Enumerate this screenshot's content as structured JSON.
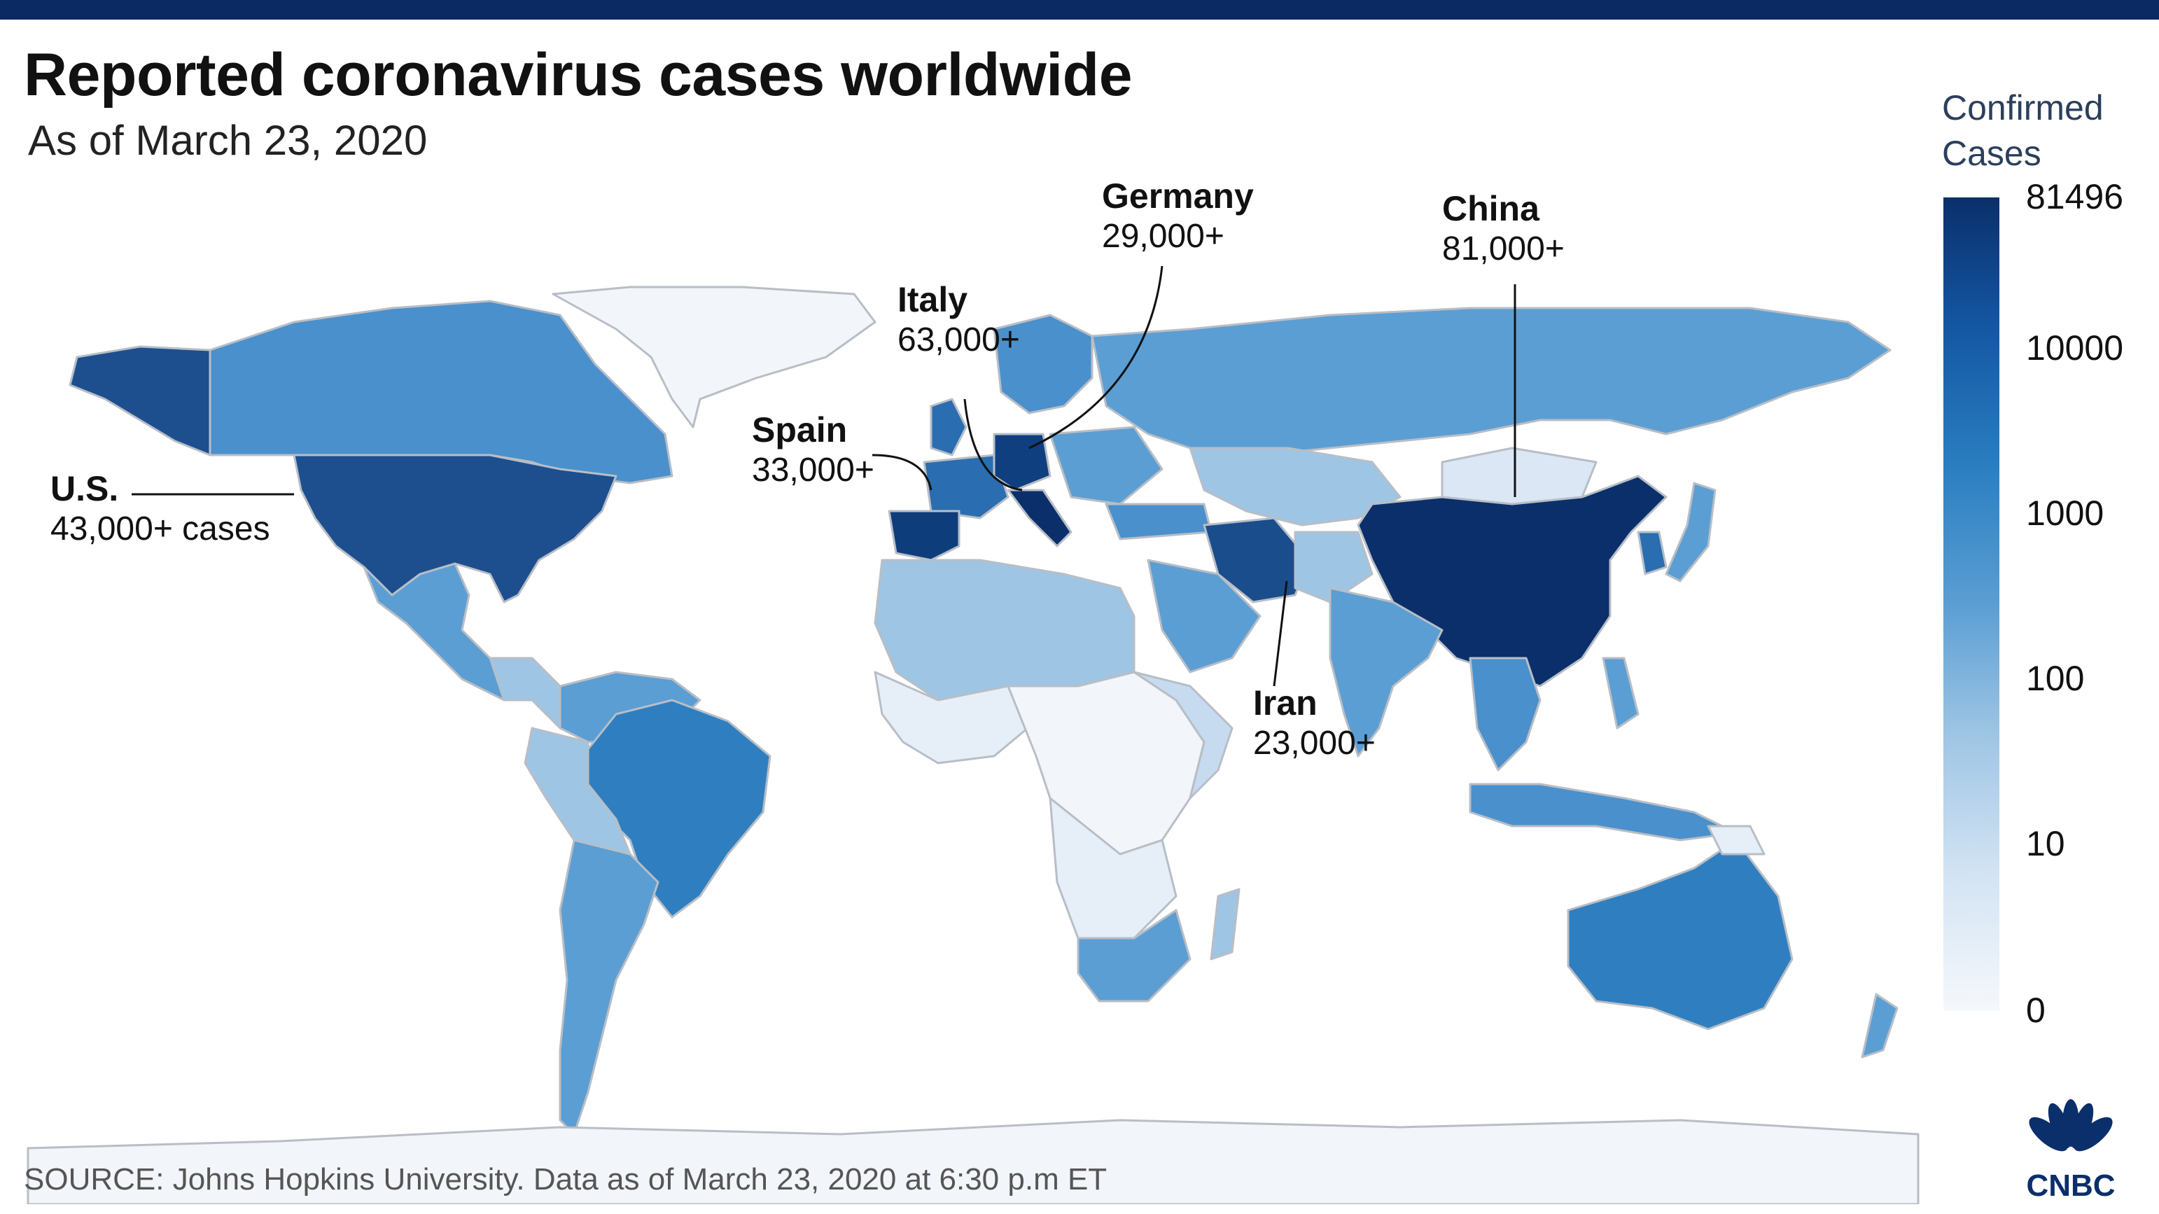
{
  "header": {
    "title": "Reported coronavirus cases worldwide",
    "subtitle": "As of March 23, 2020"
  },
  "callouts": [
    {
      "name": "U.S.",
      "value": "43,000+ cases"
    },
    {
      "name": "Spain",
      "value": "33,000+"
    },
    {
      "name": "Italy",
      "value": "63,000+"
    },
    {
      "name": "Germany",
      "value": "29,000+"
    },
    {
      "name": "China",
      "value": "81,000+"
    },
    {
      "name": "Iran",
      "value": "23,000+"
    }
  ],
  "legend": {
    "title_line1": "Confirmed",
    "title_line2": "Cases",
    "ticks": [
      "81496",
      "10000",
      "1000",
      "100",
      "10",
      "0"
    ],
    "scale": "log",
    "colors": [
      "#0b2f6a",
      "#1457a3",
      "#2a7ec0",
      "#5b9ed3",
      "#9ec5e4",
      "#d3e3f3",
      "#f5f8fc"
    ]
  },
  "source": "SOURCE: Johns Hopkins University. Data as of March 23, 2020 at 6:30 p.m ET",
  "logo": {
    "text": "CNBC",
    "icon": "cnbc-peacock-icon"
  }
}
